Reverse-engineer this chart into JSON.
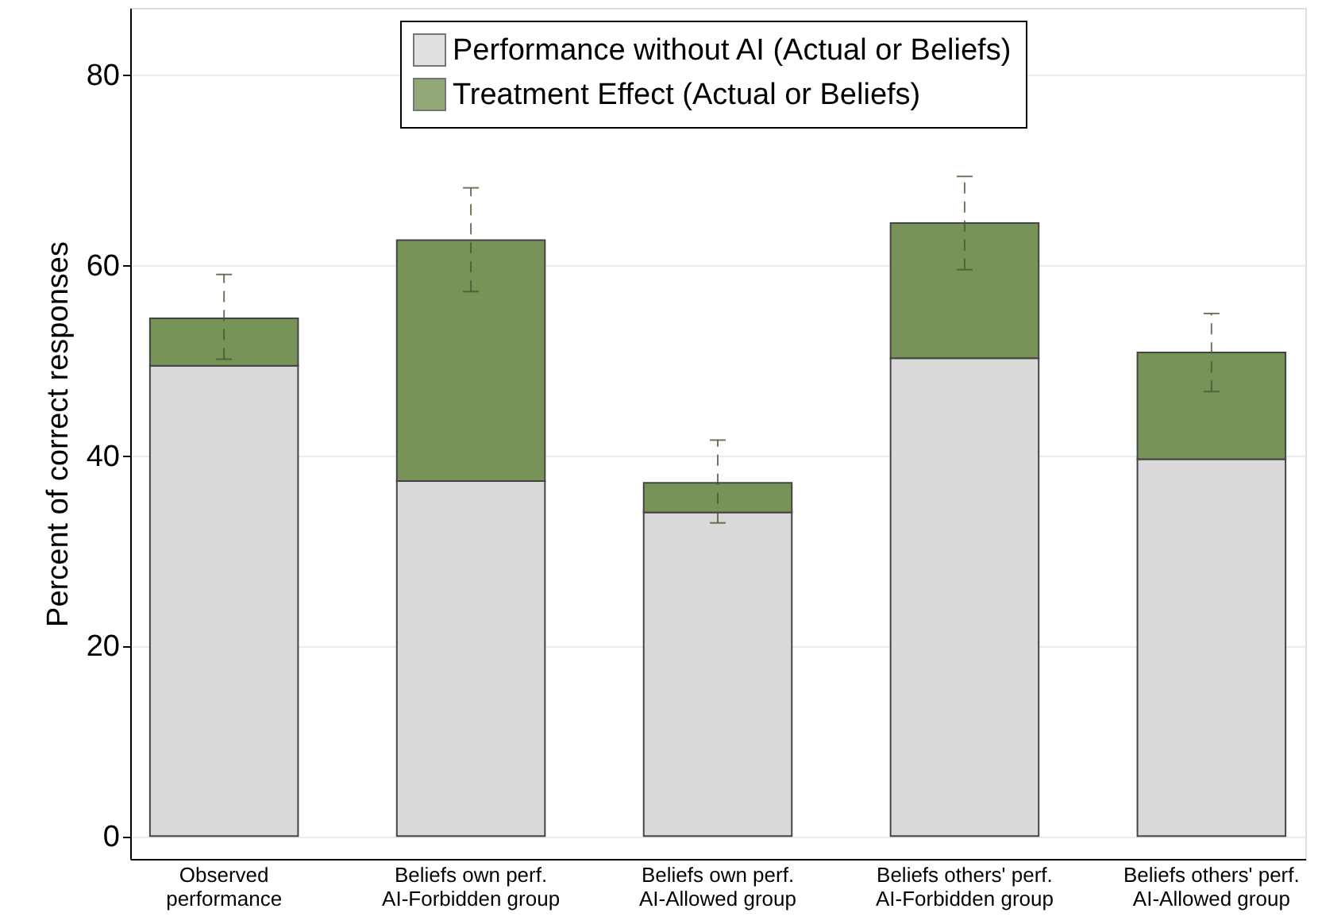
{
  "chart_data": {
    "type": "bar",
    "stacked": true,
    "ylabel": "Percent of correct responses",
    "categories": [
      "Observed\nperformance",
      "Beliefs own perf.\nAI-Forbidden group",
      "Beliefs own perf.\nAI-Allowed group",
      "Beliefs others' perf.\nAI-Forbidden group",
      "Beliefs others' perf.\nAI-Allowed group"
    ],
    "series": [
      {
        "name": "Performance without AI (Actual or Beliefs)",
        "color": "#d9d9d9",
        "values": [
          49.4,
          37.3,
          34.0,
          50.2,
          39.6
        ]
      },
      {
        "name": "Treatment Effect (Actual or Beliefs)",
        "color": "#779357",
        "values": [
          5.0,
          25.3,
          3.1,
          14.2,
          11.2
        ],
        "errors": [
          [
            50.1,
            59.0
          ],
          [
            57.2,
            68.1
          ],
          [
            32.9,
            41.6
          ],
          [
            59.5,
            69.3
          ],
          [
            46.7,
            54.9
          ]
        ]
      }
    ],
    "ylim": [
      -2.4,
      87
    ],
    "yticks": [
      0,
      20,
      40,
      60,
      80
    ],
    "grid": "y",
    "legend": "top"
  }
}
